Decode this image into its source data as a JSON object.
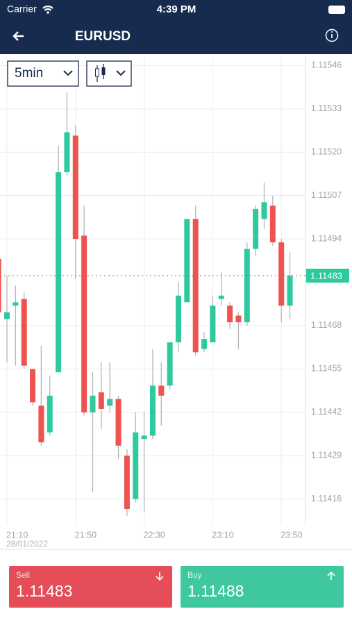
{
  "status_bar": {
    "carrier": "Carrier",
    "time": "4:39 PM"
  },
  "header": {
    "title": "EURUSD"
  },
  "toolbar": {
    "interval": "5min"
  },
  "chart_data": {
    "type": "candlestick",
    "categories": [
      null,
      "21:10",
      null,
      null,
      null,
      null,
      null,
      null,
      null,
      "21:50",
      null,
      null,
      null,
      null,
      null,
      null,
      null,
      "22:30",
      null,
      null,
      null,
      null,
      null,
      null,
      null,
      "23:10",
      null,
      null,
      null,
      null,
      null,
      null,
      null,
      "23:50",
      null
    ],
    "x_sublabel": "28/01/2022",
    "open": [
      1.11488,
      1.1147,
      1.11474,
      1.11476,
      1.11455,
      1.11444,
      1.11436,
      1.11454,
      1.11514,
      1.11525,
      1.11495,
      1.11442,
      1.11448,
      1.11444,
      1.11446,
      1.11429,
      1.11416,
      1.11434,
      1.11435,
      1.1145,
      1.1145,
      1.11463,
      1.11475,
      1.115,
      1.11461,
      1.11463,
      1.11476,
      1.11474,
      1.11471,
      1.11469,
      1.11491,
      1.115,
      1.11504,
      1.11493,
      1.11474
    ],
    "high": [
      1.11489,
      1.11483,
      1.1148,
      1.11478,
      1.11455,
      1.11462,
      1.11453,
      1.11522,
      1.11538,
      1.11528,
      1.11504,
      1.11454,
      1.11457,
      1.11457,
      1.11447,
      1.11431,
      1.11442,
      1.11442,
      1.11461,
      1.11457,
      1.11463,
      1.11481,
      1.115,
      1.11504,
      1.11466,
      1.11477,
      1.11484,
      1.11475,
      1.11472,
      1.11493,
      1.11504,
      1.11511,
      1.11507,
      1.11494,
      1.1149
    ],
    "low": [
      1.1147,
      1.11457,
      1.11456,
      1.11455,
      1.11444,
      1.11432,
      1.11435,
      1.11454,
      1.11513,
      1.11482,
      1.11441,
      1.11418,
      1.11437,
      1.11442,
      1.11428,
      1.11411,
      1.11415,
      1.11412,
      1.11434,
      1.11438,
      1.11449,
      1.1146,
      1.11475,
      1.11459,
      1.1146,
      1.11463,
      1.11474,
      1.11467,
      1.11461,
      1.11468,
      1.11489,
      1.11497,
      1.11492,
      1.11469,
      1.1147
    ],
    "close": [
      1.11472,
      1.11472,
      1.11475,
      1.11456,
      1.11445,
      1.11433,
      1.11447,
      1.11514,
      1.11526,
      1.11494,
      1.11442,
      1.11447,
      1.11443,
      1.11446,
      1.11432,
      1.11413,
      1.11436,
      1.11435,
      1.1145,
      1.11447,
      1.11463,
      1.11477,
      1.115,
      1.1146,
      1.11464,
      1.11474,
      1.11477,
      1.11469,
      1.11469,
      1.11491,
      1.11503,
      1.11505,
      1.11493,
      1.11474,
      1.11483
    ],
    "up_color": "#2ec99e",
    "down_color": "#ef5350",
    "ylim": [
      1.11408,
      1.11549
    ],
    "yticks": [
      1.11546,
      1.11533,
      {
        "value": 1.1152,
        "label": "1.11520"
      },
      1.11507,
      1.11494,
      1.11468,
      1.11455,
      1.11442,
      1.11429,
      1.11416
    ],
    "last_price": 1.11483,
    "grid": true
  },
  "trade": {
    "sell": {
      "label": "Sell",
      "price": "1.11483"
    },
    "buy": {
      "label": "Buy",
      "price": "1.11488"
    }
  }
}
